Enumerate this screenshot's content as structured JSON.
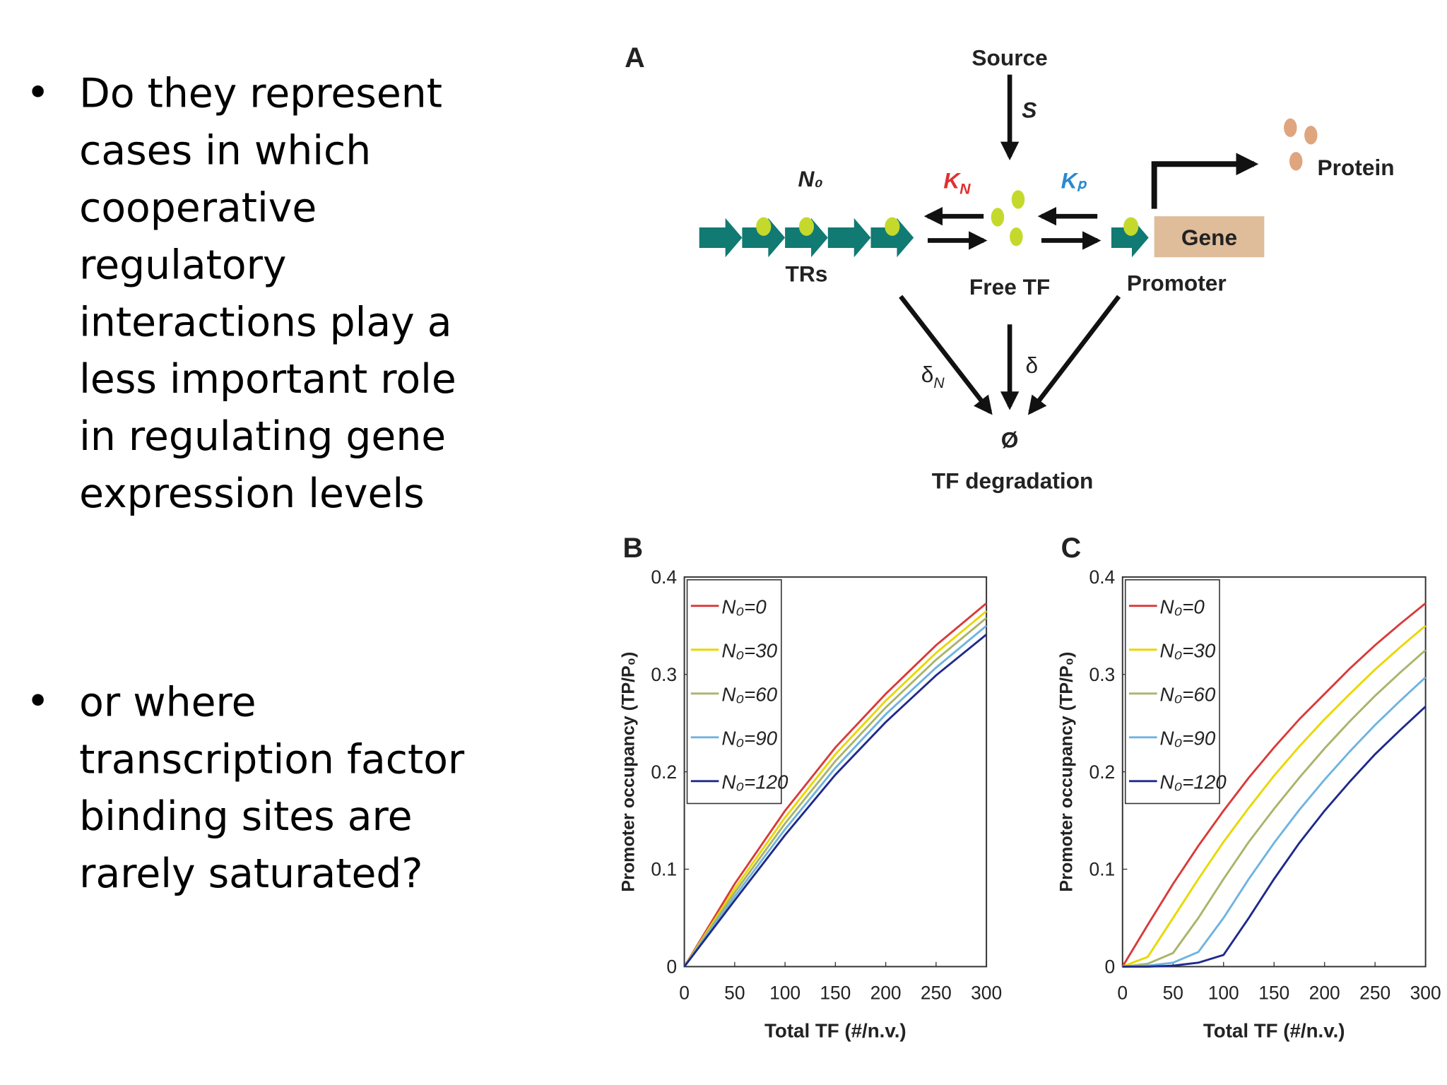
{
  "bullets": [
    [
      "Do they represent",
      "cases in which",
      "cooperative",
      "regulatory",
      "interactions play a",
      "less important role",
      "in regulating gene",
      "expression levels"
    ],
    [
      "or where",
      "transcription factor",
      "binding sites are",
      "rarely saturated?"
    ]
  ],
  "diagram": {
    "panel": "A",
    "source": "Source",
    "s": "S",
    "n0": "N₀",
    "kn": {
      "main": "K",
      "sub": "N"
    },
    "kp": "Kₚ",
    "trs": "TRs",
    "free_tf": "Free TF",
    "promoter": "Promoter",
    "gene": "Gene",
    "protein": "Protein",
    "delta_n": {
      "main": "δ",
      "sub": "N"
    },
    "delta": "δ",
    "null": "Ø",
    "degradation": "TF degradation"
  },
  "chart_data": [
    {
      "type": "line",
      "panel": "B",
      "xlabel": "Total TF (#/n.v.)",
      "ylabel": "Promoter occupancy (TP/P₀)",
      "x": [
        0,
        50,
        100,
        150,
        200,
        250,
        300
      ],
      "xlim": [
        0,
        300
      ],
      "xticks": [
        0,
        50,
        100,
        150,
        200,
        250,
        300
      ],
      "ylim": [
        0,
        0.4
      ],
      "yticks": [
        0,
        0.1,
        0.2,
        0.3,
        0.4
      ],
      "legend": "upper-left",
      "series": [
        {
          "name": "N₀=0",
          "color": "#d93a3a",
          "values": [
            0,
            0.085,
            0.16,
            0.225,
            0.28,
            0.33,
            0.373
          ]
        },
        {
          "name": "N₀=30",
          "color": "#e8d800",
          "values": [
            0,
            0.08,
            0.153,
            0.218,
            0.273,
            0.322,
            0.365
          ]
        },
        {
          "name": "N₀=60",
          "color": "#a9b46a",
          "values": [
            0,
            0.076,
            0.147,
            0.211,
            0.266,
            0.315,
            0.358
          ]
        },
        {
          "name": "N₀=90",
          "color": "#6fb3e0",
          "values": [
            0,
            0.072,
            0.141,
            0.204,
            0.259,
            0.307,
            0.35
          ]
        },
        {
          "name": "N₀=120",
          "color": "#1f2a8a",
          "values": [
            0,
            0.068,
            0.135,
            0.197,
            0.251,
            0.299,
            0.341
          ]
        }
      ]
    },
    {
      "type": "line",
      "panel": "C",
      "xlabel": "Total TF (#/n.v.)",
      "ylabel": "Promoter occupancy (TP/P₀)",
      "x": [
        0,
        25,
        50,
        75,
        100,
        125,
        150,
        175,
        200,
        225,
        250,
        275,
        300
      ],
      "xlim": [
        0,
        300
      ],
      "xticks": [
        0,
        50,
        100,
        150,
        200,
        250,
        300
      ],
      "ylim": [
        0,
        0.4
      ],
      "yticks": [
        0,
        0.1,
        0.2,
        0.3,
        0.4
      ],
      "legend": "upper-left",
      "series": [
        {
          "name": "N₀=0",
          "color": "#d93a3a",
          "values": [
            0,
            0.043,
            0.085,
            0.124,
            0.16,
            0.194,
            0.225,
            0.254,
            0.28,
            0.306,
            0.33,
            0.352,
            0.373
          ]
        },
        {
          "name": "N₀=30",
          "color": "#e8d800",
          "values": [
            0,
            0.01,
            0.05,
            0.09,
            0.128,
            0.163,
            0.196,
            0.226,
            0.254,
            0.28,
            0.305,
            0.328,
            0.35
          ]
        },
        {
          "name": "N₀=60",
          "color": "#a9b46a",
          "values": [
            0,
            0.003,
            0.014,
            0.05,
            0.09,
            0.128,
            0.162,
            0.194,
            0.224,
            0.252,
            0.278,
            0.302,
            0.325
          ]
        },
        {
          "name": "N₀=90",
          "color": "#6fb3e0",
          "values": [
            0,
            0.001,
            0.004,
            0.015,
            0.05,
            0.09,
            0.127,
            0.161,
            0.192,
            0.221,
            0.248,
            0.273,
            0.297
          ]
        },
        {
          "name": "N₀=120",
          "color": "#1f2a8a",
          "values": [
            0,
            0,
            0.001,
            0.004,
            0.012,
            0.05,
            0.09,
            0.127,
            0.16,
            0.19,
            0.218,
            0.243,
            0.267
          ]
        }
      ]
    }
  ]
}
